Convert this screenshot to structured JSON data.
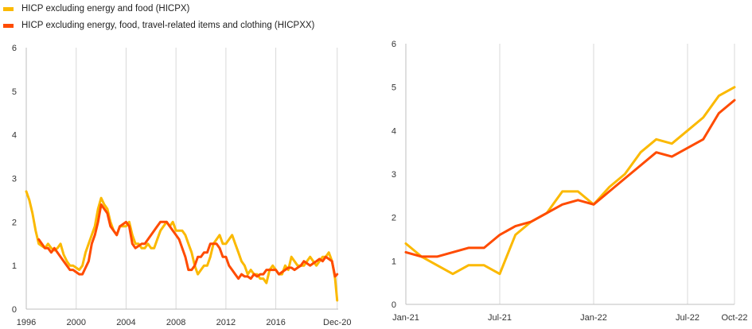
{
  "legend": [
    {
      "label": "HICP excluding energy and food (HICPX)",
      "color": "#FBB900"
    },
    {
      "label": "HICP excluding energy, food, travel-related items and clothing (HICPXX)",
      "color": "#FF4B00"
    }
  ],
  "chart_data": [
    {
      "type": "line",
      "title": "",
      "xlabel": "",
      "ylabel": "",
      "ylim": [
        0,
        6
      ],
      "yticks": [
        "0",
        "1",
        "2",
        "3",
        "4",
        "5",
        "6"
      ],
      "xlim": [
        1996.0,
        2021.0
      ],
      "xticks": [
        {
          "value": 1996,
          "label": "1996"
        },
        {
          "value": 2000,
          "label": "2000"
        },
        {
          "value": 2004,
          "label": "2004"
        },
        {
          "value": 2008,
          "label": "2008"
        },
        {
          "value": 2012,
          "label": "2012"
        },
        {
          "value": 2016,
          "label": "2016"
        },
        {
          "value": 2020.92,
          "label": "Dec-20"
        }
      ],
      "grid": "vertical",
      "series": [
        {
          "name": "HICP excluding energy and food (HICPX)",
          "color": "#FBB900",
          "x": [
            1996.0,
            1996.25,
            1996.5,
            1996.75,
            1997.0,
            1997.25,
            1997.5,
            1997.75,
            1998.0,
            1998.25,
            1998.5,
            1998.75,
            1999.0,
            1999.25,
            1999.5,
            1999.75,
            2000.0,
            2000.25,
            2000.5,
            2000.75,
            2001.0,
            2001.25,
            2001.5,
            2001.75,
            2002.0,
            2002.25,
            2002.5,
            2002.75,
            2003.0,
            2003.25,
            2003.5,
            2003.75,
            2004.0,
            2004.25,
            2004.5,
            2004.75,
            2005.0,
            2005.25,
            2005.5,
            2005.75,
            2006.0,
            2006.25,
            2006.5,
            2006.75,
            2007.0,
            2007.25,
            2007.5,
            2007.75,
            2008.0,
            2008.25,
            2008.5,
            2008.75,
            2009.0,
            2009.25,
            2009.5,
            2009.75,
            2010.0,
            2010.25,
            2010.5,
            2010.75,
            2011.0,
            2011.25,
            2011.5,
            2011.75,
            2012.0,
            2012.25,
            2012.5,
            2012.75,
            2013.0,
            2013.25,
            2013.5,
            2013.75,
            2014.0,
            2014.25,
            2014.5,
            2014.75,
            2015.0,
            2015.25,
            2015.5,
            2015.75,
            2016.0,
            2016.25,
            2016.5,
            2016.75,
            2017.0,
            2017.25,
            2017.5,
            2017.75,
            2018.0,
            2018.25,
            2018.5,
            2018.75,
            2019.0,
            2019.25,
            2019.5,
            2019.75,
            2020.0,
            2020.25,
            2020.5,
            2020.75,
            2020.92
          ],
          "y": [
            2.7,
            2.5,
            2.2,
            1.8,
            1.5,
            1.45,
            1.4,
            1.5,
            1.4,
            1.35,
            1.4,
            1.5,
            1.25,
            1.1,
            1.0,
            1.0,
            0.95,
            0.9,
            1.0,
            1.3,
            1.5,
            1.7,
            1.9,
            2.3,
            2.55,
            2.4,
            2.3,
            2.0,
            1.8,
            1.7,
            1.9,
            1.9,
            1.9,
            2.0,
            1.7,
            1.5,
            1.5,
            1.4,
            1.4,
            1.5,
            1.4,
            1.4,
            1.6,
            1.8,
            1.9,
            2.0,
            1.9,
            2.0,
            1.8,
            1.8,
            1.8,
            1.7,
            1.5,
            1.3,
            1.0,
            0.8,
            0.9,
            1.0,
            1.0,
            1.2,
            1.5,
            1.6,
            1.7,
            1.5,
            1.5,
            1.6,
            1.7,
            1.5,
            1.3,
            1.1,
            1.0,
            0.8,
            0.9,
            0.8,
            0.8,
            0.7,
            0.7,
            0.6,
            0.9,
            1.0,
            0.9,
            0.8,
            0.8,
            1.0,
            0.9,
            1.2,
            1.1,
            1.0,
            1.0,
            1.0,
            1.1,
            1.2,
            1.1,
            1.0,
            1.1,
            1.2,
            1.2,
            1.3,
            1.1,
            0.7,
            0.2
          ]
        },
        {
          "name": "HICP excluding energy, food, travel-related items and clothing (HICPXX)",
          "color": "#FF4B00",
          "x": [
            1997.0,
            1997.25,
            1997.5,
            1997.75,
            1998.0,
            1998.25,
            1998.5,
            1998.75,
            1999.0,
            1999.25,
            1999.5,
            1999.75,
            2000.0,
            2000.25,
            2000.5,
            2000.75,
            2001.0,
            2001.25,
            2001.5,
            2001.75,
            2002.0,
            2002.25,
            2002.5,
            2002.75,
            2003.0,
            2003.25,
            2003.5,
            2003.75,
            2004.0,
            2004.25,
            2004.5,
            2004.75,
            2005.0,
            2005.25,
            2005.5,
            2005.75,
            2006.0,
            2006.25,
            2006.5,
            2006.75,
            2007.0,
            2007.25,
            2007.5,
            2007.75,
            2008.0,
            2008.25,
            2008.5,
            2008.75,
            2009.0,
            2009.25,
            2009.5,
            2009.75,
            2010.0,
            2010.25,
            2010.5,
            2010.75,
            2011.0,
            2011.25,
            2011.5,
            2011.75,
            2012.0,
            2012.25,
            2012.5,
            2012.75,
            2013.0,
            2013.25,
            2013.5,
            2013.75,
            2014.0,
            2014.25,
            2014.5,
            2014.75,
            2015.0,
            2015.25,
            2015.5,
            2015.75,
            2016.0,
            2016.25,
            2016.5,
            2016.75,
            2017.0,
            2017.25,
            2017.5,
            2017.75,
            2018.0,
            2018.25,
            2018.5,
            2018.75,
            2019.0,
            2019.25,
            2019.5,
            2019.75,
            2020.0,
            2020.25,
            2020.5,
            2020.75,
            2020.92
          ],
          "y": [
            1.6,
            1.5,
            1.4,
            1.4,
            1.3,
            1.4,
            1.3,
            1.2,
            1.1,
            1.0,
            0.9,
            0.9,
            0.85,
            0.8,
            0.8,
            0.95,
            1.1,
            1.5,
            1.7,
            2.0,
            2.4,
            2.3,
            2.2,
            1.9,
            1.8,
            1.7,
            1.9,
            1.95,
            2.0,
            1.9,
            1.5,
            1.4,
            1.45,
            1.5,
            1.5,
            1.6,
            1.7,
            1.8,
            1.9,
            2.0,
            2.0,
            2.0,
            1.9,
            1.8,
            1.7,
            1.6,
            1.4,
            1.2,
            0.9,
            0.9,
            1.0,
            1.2,
            1.2,
            1.3,
            1.3,
            1.5,
            1.5,
            1.5,
            1.4,
            1.2,
            1.2,
            1.0,
            0.9,
            0.8,
            0.7,
            0.8,
            0.75,
            0.75,
            0.7,
            0.8,
            0.75,
            0.8,
            0.8,
            0.9,
            0.9,
            0.9,
            0.9,
            0.8,
            0.85,
            0.9,
            0.95,
            0.95,
            0.9,
            0.95,
            1.0,
            1.1,
            1.05,
            1.0,
            1.05,
            1.1,
            1.15,
            1.1,
            1.2,
            1.15,
            1.1,
            0.75,
            0.8
          ]
        }
      ]
    },
    {
      "type": "line",
      "title": "",
      "xlabel": "",
      "ylabel": "",
      "ylim": [
        0,
        6
      ],
      "yticks": [
        "0",
        "1",
        "2",
        "3",
        "4",
        "5",
        "6"
      ],
      "categories": [
        "Jan-21",
        "Feb-21",
        "Mar-21",
        "Apr-21",
        "May-21",
        "Jun-21",
        "Jul-21",
        "Aug-21",
        "Sep-21",
        "Oct-21",
        "Nov-21",
        "Dec-21",
        "Jan-22",
        "Feb-22",
        "Mar-22",
        "Apr-22",
        "May-22",
        "Jun-22",
        "Jul-22",
        "Aug-22",
        "Sep-22",
        "Oct-22"
      ],
      "xticks": [
        {
          "index": 0,
          "label": "Jan-21"
        },
        {
          "index": 6,
          "label": "Jul-21"
        },
        {
          "index": 12,
          "label": "Jan-22"
        },
        {
          "index": 18,
          "label": "Jul-22"
        },
        {
          "index": 21,
          "label": "Oct-22"
        }
      ],
      "grid": "vertical",
      "series": [
        {
          "name": "HICP excluding energy and food (HICPX)",
          "color": "#FBB900",
          "values": [
            1.4,
            1.1,
            0.9,
            0.7,
            0.9,
            0.9,
            0.7,
            1.6,
            1.9,
            2.1,
            2.6,
            2.6,
            2.3,
            2.7,
            3.0,
            3.5,
            3.8,
            3.7,
            4.0,
            4.3,
            4.8,
            5.0
          ]
        },
        {
          "name": "HICP excluding energy, food, travel-related items and clothing (HICPXX)",
          "color": "#FF4B00",
          "values": [
            1.2,
            1.1,
            1.1,
            1.2,
            1.3,
            1.3,
            1.6,
            1.8,
            1.9,
            2.1,
            2.3,
            2.4,
            2.3,
            2.6,
            2.9,
            3.2,
            3.5,
            3.4,
            3.6,
            3.8,
            4.4,
            4.7
          ]
        }
      ]
    }
  ]
}
